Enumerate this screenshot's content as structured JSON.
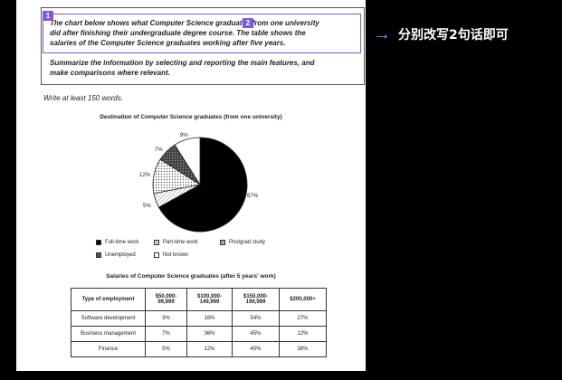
{
  "task": {
    "lines": [
      "The chart below shows what Computer Science graduates from one university",
      "did after finishing their undergraduate degree course. The table shows the",
      "salaries of the Computer Science graduates working after five years.",
      "Summarize the information by selecting and reporting the main features, and",
      "make comparisons where relevant."
    ],
    "badges": [
      "1",
      "2"
    ]
  },
  "write_note": "Write at least 150 words.",
  "right_note": {
    "arrow": "→",
    "text": "分别改写2句话即可",
    "accent": "#9d7cf0"
  },
  "pie": {
    "title": "Destination of Computer Science graduates (from one university)",
    "labels": [
      "67%",
      "5%",
      "12%",
      "7%",
      "9%"
    ],
    "legend": [
      "Full-time work",
      "Part-time work",
      "Postgrad study",
      "Unemployed",
      "Not known"
    ]
  },
  "table": {
    "title": "Salaries of Computer Science graduates (after 5 years' work)",
    "headers": [
      "Type of employment",
      "$50,000-\n99,999",
      "$100,000-\n149,999",
      "$150,000-\n199,999",
      "$200,000+"
    ],
    "rows": [
      [
        "Software development",
        "3%",
        "16%",
        "54%",
        "27%"
      ],
      [
        "Business management",
        "7%",
        "36%",
        "45%",
        "12%"
      ],
      [
        "Finance",
        "5%",
        "12%",
        "45%",
        "38%"
      ]
    ]
  },
  "chart_data": {
    "type": "pie",
    "title": "Destination of Computer Science graduates (from one university)",
    "categories": [
      "Full-time work",
      "Part-time work",
      "Postgrad study",
      "Unemployed",
      "Not known"
    ],
    "values": [
      67,
      5,
      12,
      7,
      9
    ],
    "legend_position": "bottom"
  }
}
